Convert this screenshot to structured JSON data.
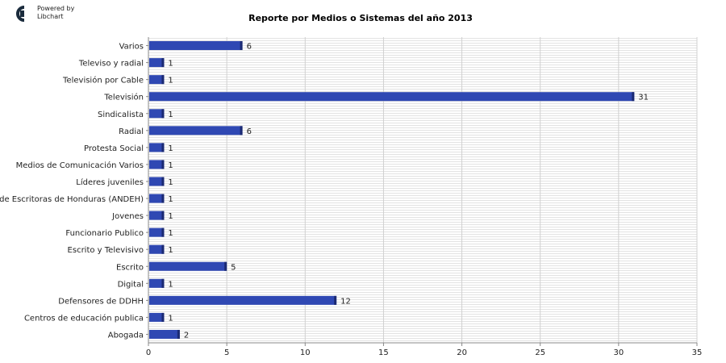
{
  "logo": {
    "line1": "Powered by",
    "line2": "Libchart"
  },
  "chart_data": {
    "type": "bar",
    "orientation": "horizontal",
    "title": "Reporte por Medios o Sistemas del año 2013",
    "xlabel": "",
    "ylabel": "",
    "xlim": [
      0,
      35
    ],
    "ticks": [
      0,
      5,
      10,
      15,
      20,
      25,
      30,
      35
    ],
    "grid": true,
    "colors": {
      "bar": "#2f48b3",
      "bar_edge": "#1b2a73",
      "grid_stripe": "#e3e3e3",
      "axis": "#888888"
    },
    "categories": [
      "Varios",
      "Televiso y radial",
      "Televisión por Cable",
      "Televisión",
      "Sindicalista",
      "Radial",
      "Protesta Social",
      "Medios de Comunicación Varios",
      "Líderes juveniles",
      "Asociación de Escritoras de Honduras (ANDEH)",
      "Jovenes",
      "Funcionario Publico",
      "Escrito y Televisivo",
      "Escrito",
      "Digital",
      "Defensores de DDHH",
      "Centros de educación publica",
      "Abogada"
    ],
    "values": [
      6,
      1,
      1,
      31,
      1,
      6,
      1,
      1,
      1,
      1,
      1,
      1,
      1,
      5,
      1,
      12,
      1,
      2
    ]
  }
}
